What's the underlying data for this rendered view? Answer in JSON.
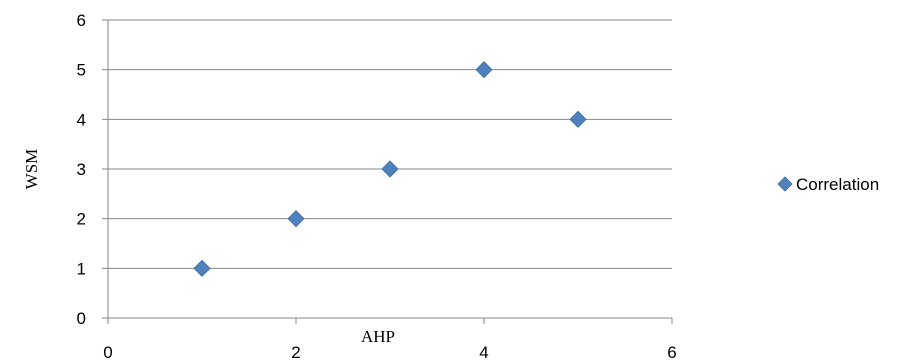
{
  "chart_data": {
    "type": "scatter",
    "title": "",
    "xlabel": "AHP",
    "ylabel": "WSM",
    "xlim": [
      0,
      6
    ],
    "ylim": [
      0,
      6
    ],
    "xticks": [
      0,
      2,
      4,
      6
    ],
    "yticks": [
      0,
      1,
      2,
      3,
      4,
      5,
      6
    ],
    "grid": "horizontal",
    "legend_position": "right",
    "series": [
      {
        "name": "Correlation",
        "marker": "diamond",
        "color": "#4F81BD",
        "x": [
          1,
          2,
          3,
          4,
          5
        ],
        "y": [
          1,
          2,
          3,
          5,
          4
        ]
      }
    ]
  }
}
